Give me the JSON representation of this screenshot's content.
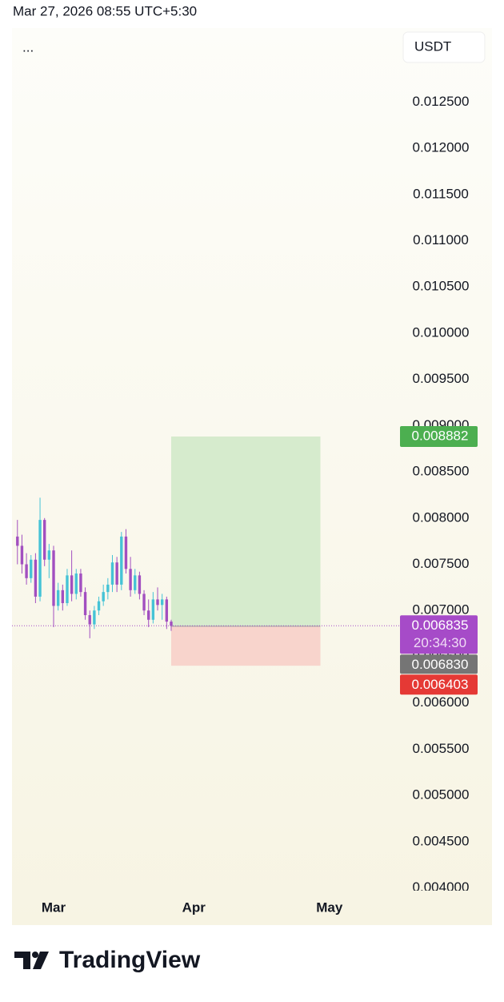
{
  "header": {
    "timestamp": "Mar 27, 2026 08:55 UTC+5:30"
  },
  "chart_data": {
    "type": "candlestick",
    "menu": "...",
    "currency": "USDT",
    "x": [
      -8,
      -7,
      -6,
      -5,
      -4,
      -3,
      -2,
      -1,
      0,
      1,
      2,
      3,
      4,
      5,
      6,
      7,
      8,
      9,
      10,
      11,
      12,
      13,
      14,
      15,
      16,
      17,
      18,
      19,
      20,
      21,
      22,
      23,
      24,
      25,
      26
    ],
    "open": [
      0.0078,
      0.0077,
      0.0075,
      0.00735,
      0.00755,
      0.00715,
      0.00798,
      0.00755,
      0.00765,
      0.00705,
      0.00722,
      0.00708,
      0.00738,
      0.00718,
      0.0074,
      0.0072,
      0.00695,
      0.00685,
      0.007,
      0.0071,
      0.0072,
      0.00728,
      0.00752,
      0.00728,
      0.0078,
      0.00745,
      0.00722,
      0.00738,
      0.00718,
      0.007,
      0.0069,
      0.00712,
      0.00706,
      0.00712,
      0.00688
    ],
    "high": [
      0.00798,
      0.00782,
      0.00762,
      0.0076,
      0.00762,
      0.00822,
      0.008,
      0.00772,
      0.0077,
      0.0073,
      0.00728,
      0.00745,
      0.00765,
      0.00745,
      0.00745,
      0.00725,
      0.007,
      0.00705,
      0.00715,
      0.00728,
      0.00735,
      0.0076,
      0.00758,
      0.00785,
      0.00788,
      0.00758,
      0.00745,
      0.00742,
      0.00722,
      0.00712,
      0.0072,
      0.00725,
      0.00718,
      0.00715,
      0.0069
    ],
    "low": [
      0.0075,
      0.0074,
      0.00728,
      0.0073,
      0.00708,
      0.0071,
      0.00748,
      0.00735,
      0.00682,
      0.007,
      0.007,
      0.00705,
      0.0071,
      0.00712,
      0.00715,
      0.0069,
      0.0067,
      0.0068,
      0.00695,
      0.00705,
      0.00712,
      0.0072,
      0.0072,
      0.00722,
      0.0074,
      0.00715,
      0.00718,
      0.00712,
      0.00695,
      0.00682,
      0.00686,
      0.007,
      0.0069,
      0.0068,
      0.00678
    ],
    "close": [
      0.0077,
      0.0075,
      0.00735,
      0.00755,
      0.00715,
      0.00798,
      0.00755,
      0.00765,
      0.00705,
      0.00722,
      0.00708,
      0.00738,
      0.00718,
      0.0074,
      0.0072,
      0.00695,
      0.00685,
      0.007,
      0.0071,
      0.0072,
      0.00728,
      0.00752,
      0.00728,
      0.0078,
      0.00745,
      0.00722,
      0.00738,
      0.00718,
      0.007,
      0.0069,
      0.00712,
      0.00706,
      0.00712,
      0.00688,
      0.006835
    ],
    "up_color": "#45c3d6",
    "down_color": "#a24fc0",
    "xlim": [
      -9.2,
      76.6
    ],
    "xticks": [
      {
        "value": 0,
        "label": "Mar"
      },
      {
        "value": 31,
        "label": "Apr"
      },
      {
        "value": 61,
        "label": "May"
      }
    ],
    "ylim": [
      0.00397,
      0.0133
    ],
    "yticks": [
      {
        "value": 0.0125,
        "label": "0.012500"
      },
      {
        "value": 0.012,
        "label": "0.012000"
      },
      {
        "value": 0.0115,
        "label": "0.011500"
      },
      {
        "value": 0.011,
        "label": "0.011000"
      },
      {
        "value": 0.0105,
        "label": "0.010500"
      },
      {
        "value": 0.01,
        "label": "0.010000"
      },
      {
        "value": 0.0095,
        "label": "0.009500"
      },
      {
        "value": 0.009,
        "label": "0.009000"
      },
      {
        "value": 0.0085,
        "label": "0.008500"
      },
      {
        "value": 0.008,
        "label": "0.008000"
      },
      {
        "value": 0.0075,
        "label": "0.007500"
      },
      {
        "value": 0.007,
        "label": "0.007000"
      },
      {
        "value": 0.0065,
        "label": "0.006500"
      },
      {
        "value": 0.006,
        "label": "0.006000"
      },
      {
        "value": 0.0055,
        "label": "0.005500"
      },
      {
        "value": 0.005,
        "label": "0.005000"
      },
      {
        "value": 0.0045,
        "label": "0.004500"
      },
      {
        "value": 0.004,
        "label": "0.004000"
      }
    ],
    "current_price": {
      "value": 0.006835,
      "label": "0.006835",
      "countdown": "20:34:30",
      "color": "#a64bc8"
    },
    "position": {
      "from_x": 26,
      "to_x": 59,
      "target": {
        "value": 0.008882,
        "label": "0.008882",
        "color": "#4caf50",
        "zone_color": "#d6ebcd"
      },
      "entry": {
        "value": 0.00683,
        "label": "0.006830",
        "color": "#757575"
      },
      "stop": {
        "value": 0.006403,
        "label": "0.006403",
        "color": "#e53935",
        "zone_color": "#f8d4cc"
      }
    }
  },
  "footer": {
    "brand": "TradingView"
  }
}
